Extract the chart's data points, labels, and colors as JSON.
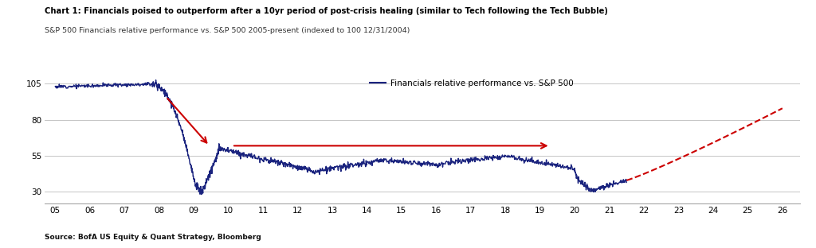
{
  "title_bold": "Chart 1: Financials poised to outperform after a 10yr period of post-crisis healing (similar to Tech following the Tech Bubble)",
  "subtitle": "S&P 500 Financials relative performance vs. S&P 500 2005-present (indexed to 100 12/31/2004)",
  "source": "Source: BofA US Equity & Quant Strategy, Bloomberg",
  "legend_label": "Financials relative performance vs. S&P 500",
  "line_color": "#1a237e",
  "arrow_color": "#cc0000",
  "dashed_color": "#cc0000",
  "yticks": [
    30,
    55,
    80,
    105
  ],
  "xticks": [
    "05",
    "06",
    "07",
    "08",
    "09",
    "10",
    "11",
    "12",
    "13",
    "14",
    "15",
    "16",
    "17",
    "18",
    "19",
    "20",
    "21",
    "22",
    "23",
    "24",
    "25",
    "26"
  ],
  "ylim": [
    22,
    115
  ],
  "xlim_start": 2004.7,
  "xlim_end": 2026.5,
  "bg_color": "#ffffff",
  "grid_color": "#bbbbbb"
}
